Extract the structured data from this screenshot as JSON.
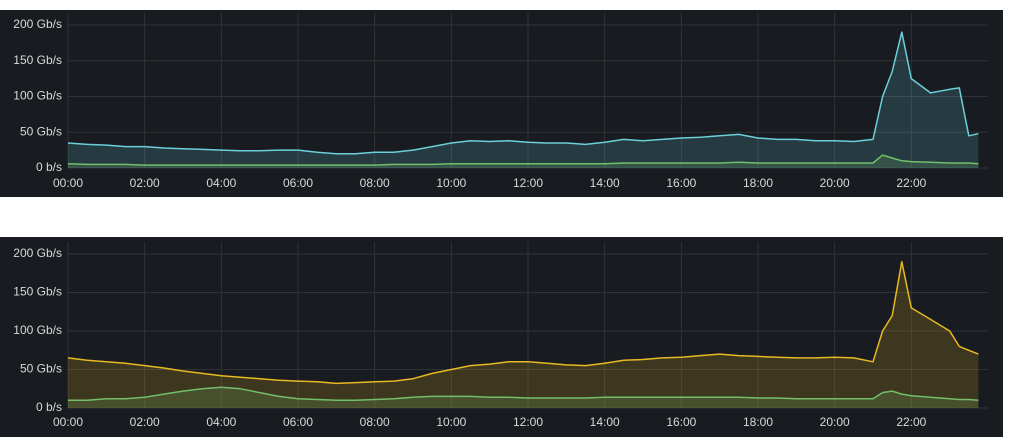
{
  "chart_data": [
    {
      "type": "line",
      "grid": true,
      "fill": true,
      "xlim": [
        0,
        24
      ],
      "ylim": [
        0,
        200
      ],
      "xticks": [
        {
          "value": 0,
          "label": "00:00"
        },
        {
          "value": 2,
          "label": "02:00"
        },
        {
          "value": 4,
          "label": "04:00"
        },
        {
          "value": 6,
          "label": "06:00"
        },
        {
          "value": 8,
          "label": "08:00"
        },
        {
          "value": 10,
          "label": "10:00"
        },
        {
          "value": 12,
          "label": "12:00"
        },
        {
          "value": 14,
          "label": "14:00"
        },
        {
          "value": 16,
          "label": "16:00"
        },
        {
          "value": 18,
          "label": "18:00"
        },
        {
          "value": 20,
          "label": "20:00"
        },
        {
          "value": 22,
          "label": "22:00"
        }
      ],
      "yticks": [
        {
          "value": 0,
          "label": "0 b/s"
        },
        {
          "value": 50,
          "label": "50 Gb/s"
        },
        {
          "value": 100,
          "label": "100 Gb/s"
        },
        {
          "value": 150,
          "label": "150 Gb/s"
        },
        {
          "value": 200,
          "label": "200 Gb/s"
        }
      ],
      "x": [
        0,
        0.5,
        1,
        1.5,
        2,
        2.5,
        3,
        3.5,
        4,
        4.5,
        5,
        5.5,
        6,
        6.5,
        7,
        7.5,
        8,
        8.5,
        9,
        9.5,
        10,
        10.5,
        11,
        11.5,
        12,
        12.5,
        13,
        13.5,
        14,
        14.5,
        15,
        15.5,
        16,
        16.5,
        17,
        17.5,
        18,
        18.5,
        19,
        19.5,
        20,
        20.5,
        21,
        21.25,
        21.5,
        21.75,
        22,
        22.5,
        23,
        23.25,
        23.5,
        23.75
      ],
      "series": [
        {
          "color": "#6ccfdc",
          "values": [
            35,
            33,
            32,
            30,
            30,
            28,
            27,
            26,
            25,
            24,
            24,
            25,
            25,
            22,
            20,
            20,
            22,
            22,
            25,
            30,
            35,
            38,
            37,
            38,
            36,
            35,
            35,
            33,
            36,
            40,
            38,
            40,
            42,
            43,
            45,
            47,
            42,
            40,
            40,
            38,
            38,
            37,
            40,
            100,
            135,
            190,
            125,
            105,
            110,
            112,
            45,
            48
          ]
        },
        {
          "color": "#73bf69",
          "values": [
            6,
            5,
            5,
            5,
            4,
            4,
            4,
            4,
            4,
            4,
            4,
            4,
            4,
            4,
            4,
            4,
            4,
            5,
            5,
            5,
            6,
            6,
            6,
            6,
            6,
            6,
            6,
            6,
            6,
            7,
            7,
            7,
            7,
            7,
            7,
            8,
            7,
            7,
            7,
            7,
            7,
            7,
            7,
            18,
            14,
            10,
            9,
            8,
            7,
            7,
            7,
            6
          ]
        }
      ]
    },
    {
      "type": "line",
      "grid": true,
      "fill": true,
      "xlim": [
        0,
        24
      ],
      "ylim": [
        0,
        200
      ],
      "xticks": [
        {
          "value": 0,
          "label": "00:00"
        },
        {
          "value": 2,
          "label": "02:00"
        },
        {
          "value": 4,
          "label": "04:00"
        },
        {
          "value": 6,
          "label": "06:00"
        },
        {
          "value": 8,
          "label": "08:00"
        },
        {
          "value": 10,
          "label": "10:00"
        },
        {
          "value": 12,
          "label": "12:00"
        },
        {
          "value": 14,
          "label": "14:00"
        },
        {
          "value": 16,
          "label": "16:00"
        },
        {
          "value": 18,
          "label": "18:00"
        },
        {
          "value": 20,
          "label": "20:00"
        },
        {
          "value": 22,
          "label": "22:00"
        }
      ],
      "yticks": [
        {
          "value": 0,
          "label": "0 b/s"
        },
        {
          "value": 50,
          "label": "50 Gb/s"
        },
        {
          "value": 100,
          "label": "100 Gb/s"
        },
        {
          "value": 150,
          "label": "150 Gb/s"
        },
        {
          "value": 200,
          "label": "200 Gb/s"
        }
      ],
      "x": [
        0,
        0.5,
        1,
        1.5,
        2,
        2.5,
        3,
        3.5,
        4,
        4.5,
        5,
        5.5,
        6,
        6.5,
        7,
        7.5,
        8,
        8.5,
        9,
        9.5,
        10,
        10.5,
        11,
        11.5,
        12,
        12.5,
        13,
        13.5,
        14,
        14.5,
        15,
        15.5,
        16,
        16.5,
        17,
        17.5,
        18,
        18.5,
        19,
        19.5,
        20,
        20.5,
        21,
        21.25,
        21.5,
        21.75,
        22,
        22.5,
        23,
        23.25,
        23.5,
        23.75
      ],
      "series": [
        {
          "color": "#e8b923",
          "values": [
            65,
            62,
            60,
            58,
            55,
            52,
            48,
            45,
            42,
            40,
            38,
            36,
            35,
            34,
            32,
            33,
            34,
            35,
            38,
            45,
            50,
            55,
            57,
            60,
            60,
            58,
            56,
            55,
            58,
            62,
            63,
            65,
            66,
            68,
            70,
            68,
            67,
            66,
            65,
            65,
            66,
            65,
            60,
            100,
            120,
            190,
            130,
            115,
            100,
            80,
            75,
            70
          ]
        },
        {
          "color": "#73bf69",
          "values": [
            10,
            10,
            12,
            12,
            14,
            18,
            22,
            25,
            27,
            25,
            20,
            15,
            12,
            11,
            10,
            10,
            11,
            12,
            14,
            15,
            15,
            15,
            14,
            14,
            13,
            13,
            13,
            13,
            14,
            14,
            14,
            14,
            14,
            14,
            14,
            14,
            13,
            13,
            12,
            12,
            12,
            12,
            12,
            20,
            22,
            18,
            16,
            14,
            12,
            11,
            11,
            10
          ]
        }
      ]
    }
  ]
}
